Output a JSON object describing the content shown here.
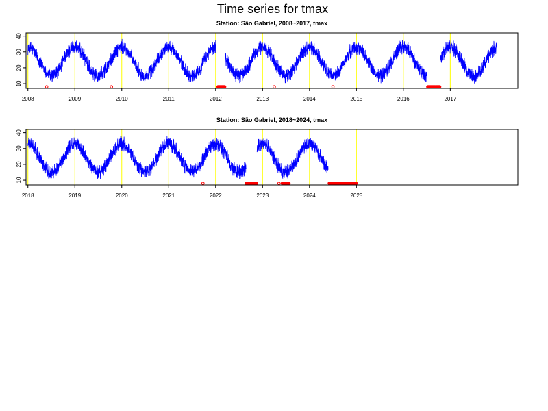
{
  "main_title": "Time series for tmax",
  "colors": {
    "series": "#0000ff",
    "missing_marker": "#ff0000",
    "year_line": "#ffff00",
    "frame": "#000000"
  },
  "chart_data": [
    {
      "type": "line",
      "title": "Station: São Gabriel, 2008~2017,  tmax",
      "xlabel": "",
      "ylabel": "",
      "series": [
        {
          "values_source": "daily tmax (°C), seasonal cycle ~10 to 40"
        }
      ],
      "xlim": [
        2007.96,
        2018.44
      ],
      "ylim": [
        7,
        42
      ],
      "x_ticks": [
        2008,
        2009,
        2010,
        2011,
        2012,
        2013,
        2014,
        2015,
        2016,
        2017
      ],
      "x_tick_labels": [
        "2008",
        "2009",
        "2010",
        "2011",
        "2012",
        "2013",
        "2014",
        "2015",
        "2016",
        "2017"
      ],
      "y_ticks": [
        10,
        20,
        30,
        40
      ],
      "y_tick_labels": [
        "10",
        "20",
        "30",
        "40"
      ],
      "data_start": 2008.0,
      "data_end": 2017.99,
      "gaps": [
        [
          2012.0,
          2012.2
        ],
        [
          2016.5,
          2016.78
        ]
      ],
      "seasonal_mean": 24,
      "seasonal_amplitude": 9,
      "noise": 3.5,
      "missing_points": [
        2008.4,
        2009.78,
        2013.25,
        2014.5
      ],
      "missing_ranges": [
        [
          2012.05,
          2012.2
        ],
        [
          2016.52,
          2016.78
        ]
      ],
      "missing_y": 8
    },
    {
      "type": "line",
      "title": "Station: São Gabriel, 2018~2024,  tmax",
      "xlabel": "",
      "ylabel": "",
      "series": [
        {
          "values_source": "daily tmax (°C), seasonal cycle ~10 to 40"
        }
      ],
      "xlim": [
        2017.96,
        2028.44
      ],
      "ylim": [
        7,
        42
      ],
      "x_ticks": [
        2018,
        2019,
        2020,
        2021,
        2022,
        2023,
        2024,
        2025
      ],
      "x_tick_labels": [
        "2018",
        "2019",
        "2020",
        "2021",
        "2022",
        "2023",
        "2024",
        "2025"
      ],
      "y_ticks": [
        10,
        20,
        30,
        40
      ],
      "y_tick_labels": [
        "10",
        "20",
        "30",
        "40"
      ],
      "data_start": 2018.0,
      "data_end": 2024.4,
      "gaps": [
        [
          2022.65,
          2022.88
        ]
      ],
      "seasonal_mean": 24,
      "seasonal_amplitude": 9,
      "noise": 3.5,
      "missing_points": [
        2021.73,
        2023.35
      ],
      "missing_ranges": [
        [
          2022.65,
          2022.88
        ],
        [
          2023.42,
          2023.57
        ],
        [
          2024.42,
          2025.0
        ]
      ],
      "missing_y": 8
    }
  ]
}
